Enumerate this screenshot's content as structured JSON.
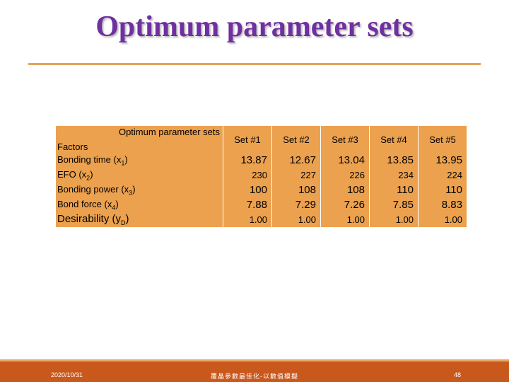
{
  "slide": {
    "title": "Optimum parameter sets",
    "table": {
      "corner_top": "Optimum parameter sets",
      "corner_bottom": "Factors",
      "columns": [
        "Set #1",
        "Set #2",
        "Set #3",
        "Set #4",
        "Set #5"
      ],
      "rows": [
        {
          "label": {
            "main": "Bonding time (x",
            "sub": "1",
            "end": ")"
          },
          "cells": [
            "13.87",
            "12.67",
            "13.04",
            "13.85",
            "13.95"
          ]
        },
        {
          "label": {
            "main": "EFO (x",
            "sub": "2",
            "end": ")"
          },
          "cells": [
            "230",
            "227",
            "226",
            "234",
            "224"
          ]
        },
        {
          "label": {
            "main": "Bonding power (x",
            "sub": "3",
            "end": ")"
          },
          "cells": [
            "100",
            "108",
            "108",
            "110",
            "110"
          ]
        },
        {
          "label": {
            "main": "Bond force (x",
            "sub": "4",
            "end": ")"
          },
          "cells": [
            "7.88",
            "7.29",
            "7.26",
            "7.85",
            "8.83"
          ]
        },
        {
          "label": {
            "main": "Desirability (y",
            "sub": "D",
            "end": ")"
          },
          "cells": [
            "1.00",
            "1.00",
            "1.00",
            "1.00",
            "1.00"
          ]
        }
      ]
    },
    "footer": {
      "date": "2020/10/31",
      "center": "覆晶參數最佳化-以數值模擬",
      "page": "48"
    }
  }
}
